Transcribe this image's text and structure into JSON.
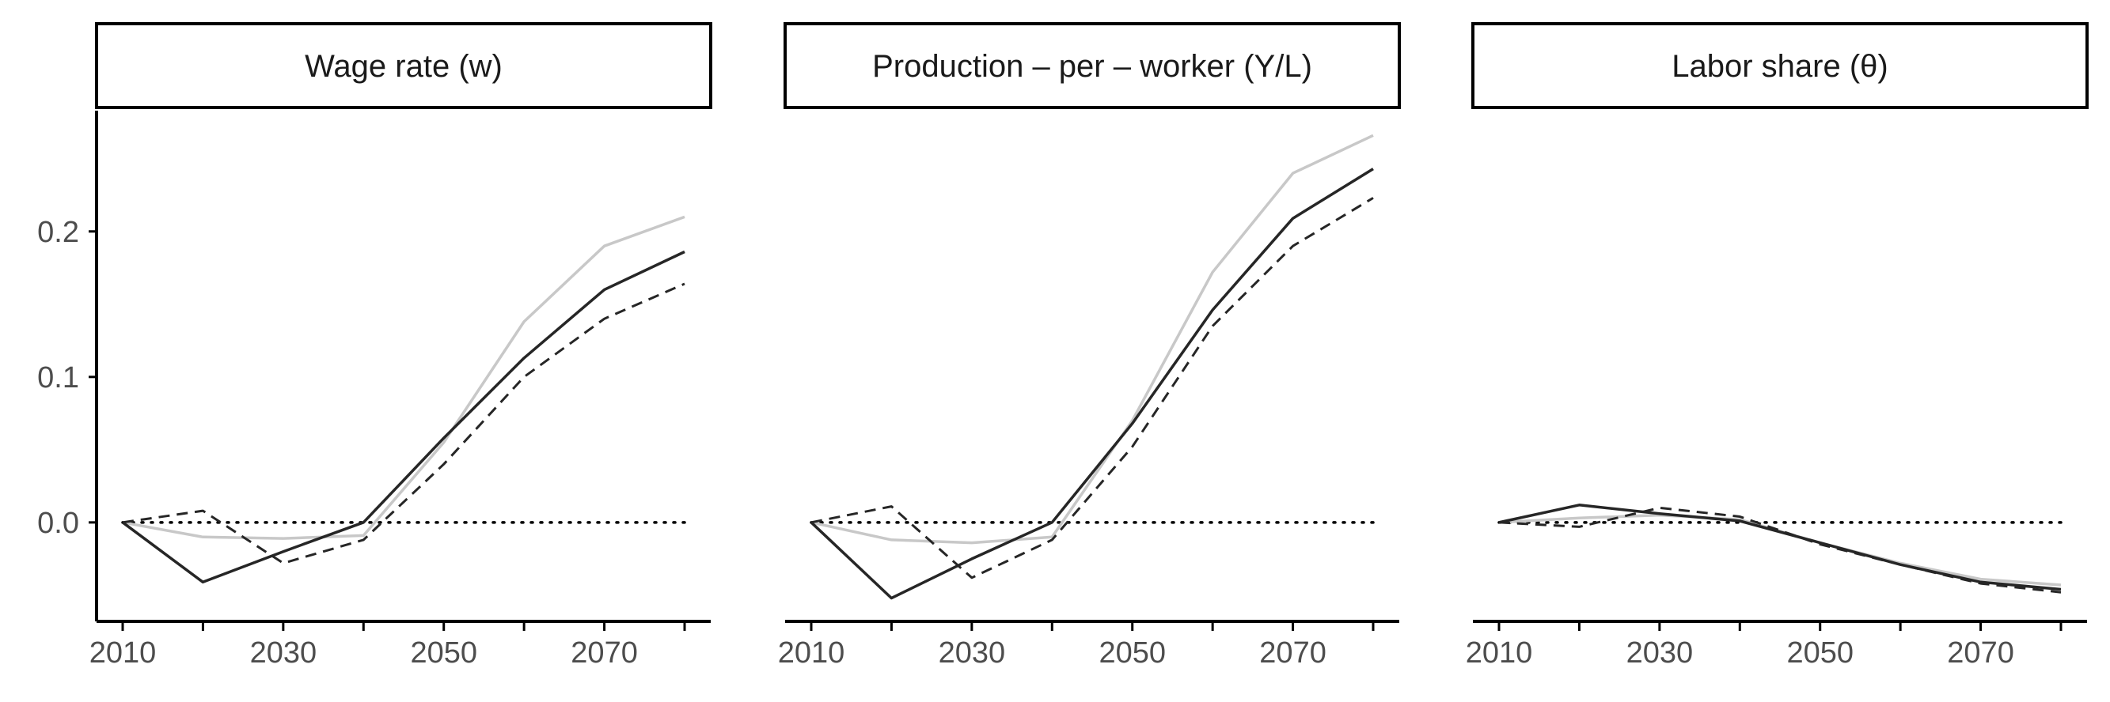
{
  "chart_data": {
    "type": "line",
    "layout": "facets",
    "x": [
      2010,
      2020,
      2030,
      2040,
      2050,
      2060,
      2070,
      2080
    ],
    "xticks": [
      2010,
      2030,
      2050,
      2070
    ],
    "yticks": [
      "0.0",
      "0.1",
      "0.2"
    ],
    "ylim": [
      -0.068,
      0.283
    ],
    "reference_line": 0,
    "grid": false,
    "legend": "none",
    "colors": {
      "solid": "#262626",
      "dashed": "#262626",
      "light": "#c8c8c8",
      "axis": "#000000"
    },
    "panels": [
      {
        "strip": "Wage rate (w)",
        "series": [
          {
            "style": "light",
            "values": [
              0,
              -0.01,
              -0.011,
              -0.009,
              0.055,
              0.138,
              0.19,
              0.21
            ]
          },
          {
            "style": "dashed",
            "values": [
              0,
              0.008,
              -0.028,
              -0.012,
              0.04,
              0.1,
              0.14,
              0.164
            ]
          },
          {
            "style": "solid",
            "values": [
              0,
              -0.041,
              -0.02,
              0,
              0.058,
              0.113,
              0.16,
              0.186
            ]
          }
        ]
      },
      {
        "strip": "Production – per – worker (Y/L)",
        "series": [
          {
            "style": "light",
            "values": [
              0,
              -0.012,
              -0.014,
              -0.01,
              0.07,
              0.172,
              0.24,
              0.266
            ]
          },
          {
            "style": "dashed",
            "values": [
              0,
              0.011,
              -0.038,
              -0.012,
              0.052,
              0.135,
              0.19,
              0.223
            ]
          },
          {
            "style": "solid",
            "values": [
              0,
              -0.052,
              -0.025,
              0,
              0.068,
              0.146,
              0.209,
              0.243
            ]
          }
        ]
      },
      {
        "strip": "Labor share (θ)",
        "series": [
          {
            "style": "light",
            "values": [
              0,
              0.003,
              0.005,
              0.002,
              -0.014,
              -0.028,
              -0.039,
              -0.043
            ]
          },
          {
            "style": "dashed",
            "values": [
              0,
              -0.003,
              0.01,
              0.004,
              -0.015,
              -0.029,
              -0.042,
              -0.048
            ]
          },
          {
            "style": "solid",
            "values": [
              0,
              0.012,
              0.006,
              0.001,
              -0.014,
              -0.029,
              -0.041,
              -0.046
            ]
          }
        ]
      }
    ]
  }
}
